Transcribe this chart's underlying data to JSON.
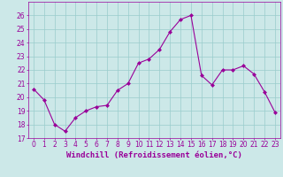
{
  "x": [
    0,
    1,
    2,
    3,
    4,
    5,
    6,
    7,
    8,
    9,
    10,
    11,
    12,
    13,
    14,
    15,
    16,
    17,
    18,
    19,
    20,
    21,
    22,
    23
  ],
  "y": [
    20.6,
    19.8,
    18.0,
    17.5,
    18.5,
    19.0,
    19.3,
    19.4,
    20.5,
    21.0,
    22.5,
    22.8,
    23.5,
    24.8,
    25.7,
    26.0,
    21.6,
    20.9,
    22.0,
    22.0,
    22.3,
    21.7,
    20.4,
    18.9
  ],
  "line_color": "#990099",
  "marker": "D",
  "marker_size": 2.0,
  "background_color": "#cce8e8",
  "grid_color": "#99cccc",
  "xlabel": "Windchill (Refroidissement éolien,°C)",
  "xlabel_color": "#990099",
  "tick_color": "#990099",
  "ylim": [
    17,
    27
  ],
  "xlim": [
    -0.5,
    23.5
  ],
  "yticks": [
    17,
    18,
    19,
    20,
    21,
    22,
    23,
    24,
    25,
    26
  ],
  "xticks": [
    0,
    1,
    2,
    3,
    4,
    5,
    6,
    7,
    8,
    9,
    10,
    11,
    12,
    13,
    14,
    15,
    16,
    17,
    18,
    19,
    20,
    21,
    22,
    23
  ],
  "tick_fontsize": 5.5,
  "xlabel_fontsize": 6.5,
  "linewidth": 0.8
}
